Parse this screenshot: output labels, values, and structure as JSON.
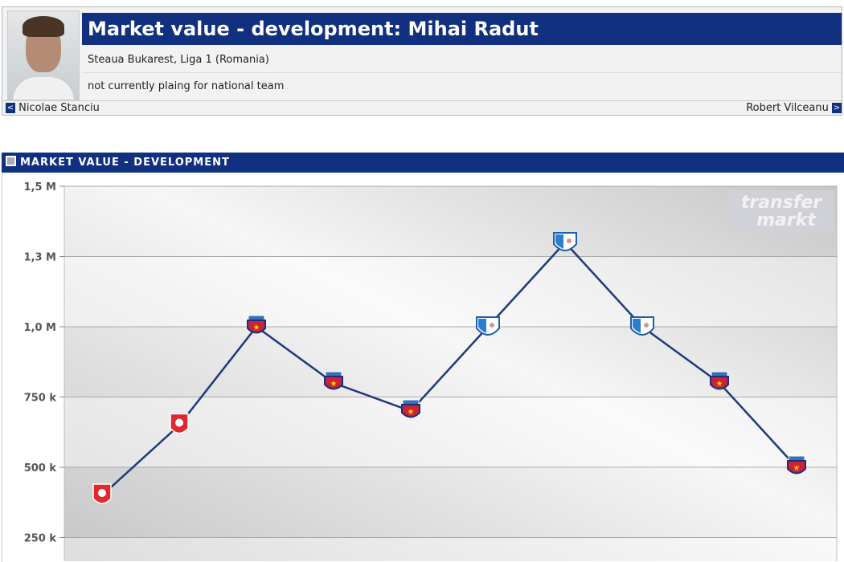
{
  "header": {
    "title": "Market value - development: Mihai Radut",
    "club_line": "Steaua Bukarest, Liga 1 (Romania)",
    "national_line": "not currently plaing for national team",
    "prev_player": "Nicolae Stanciu",
    "next_player": "Robert Vilceanu"
  },
  "section_title": "MARKET VALUE - DEVELOPMENT",
  "watermark": "transfermarkt",
  "chart_data": {
    "type": "line",
    "y_tick_labels": [
      "250 k",
      "500 k",
      "750 k",
      "1,0 M",
      "1,3 M",
      "1,5 M"
    ],
    "y_ticks": [
      250000,
      500000,
      750000,
      1000000,
      1250000,
      1500000
    ],
    "ylim": [
      0,
      1500000
    ],
    "values": [
      400000,
      650000,
      1000000,
      800000,
      700000,
      1000000,
      1300000,
      1000000,
      800000,
      500000
    ],
    "point_icons": [
      "red-club-crest",
      "red-club-crest",
      "steaua-crest",
      "steaua-crest",
      "steaua-crest",
      "pandurii-crest",
      "pandurii-crest",
      "pandurii-crest",
      "steaua-crest",
      "steaua-crest"
    ],
    "line_color": "#1f3a7a",
    "grid": true
  }
}
